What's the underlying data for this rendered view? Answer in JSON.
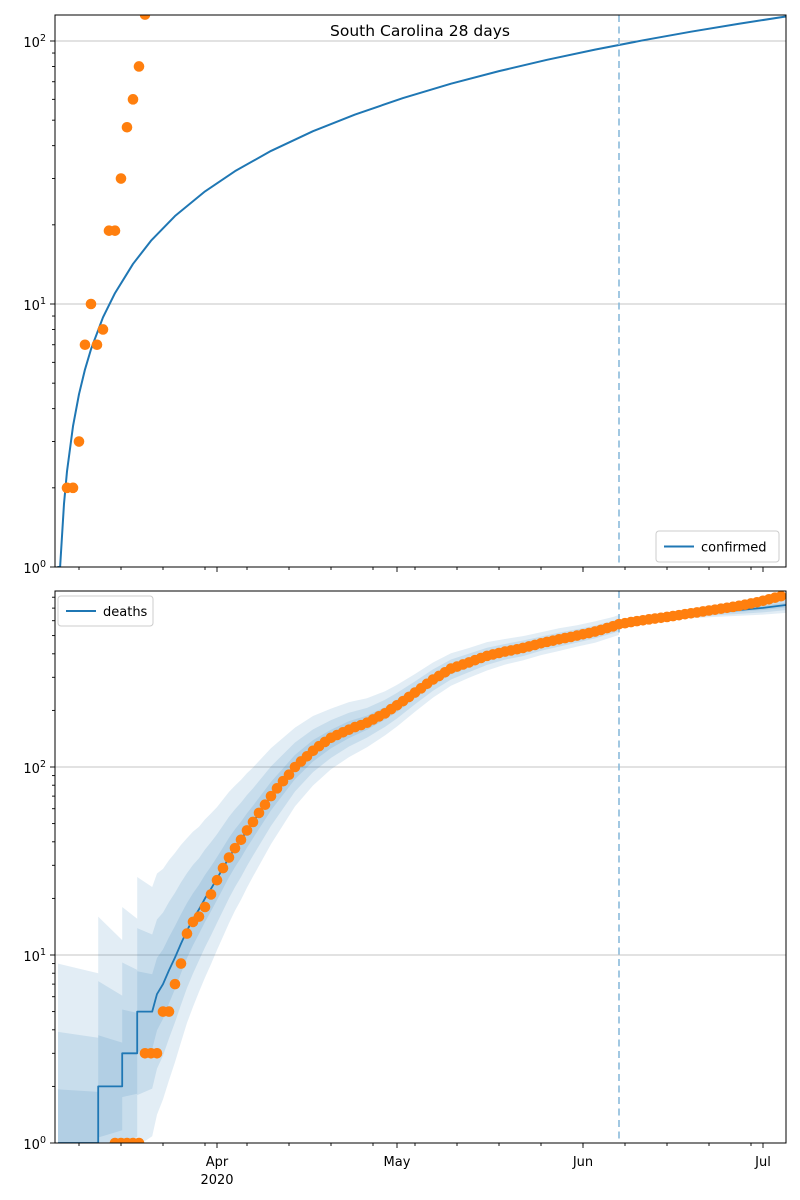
{
  "figure": {
    "title": "South Carolina 28 days",
    "day0_date": "2020-03-05",
    "xlim_days": [
      0,
      121.8
    ],
    "year_label": "2020",
    "x_axis": {
      "major_ticks": [
        {
          "label": "Apr",
          "day": 27
        },
        {
          "label": "May",
          "day": 57
        },
        {
          "label": "Jun",
          "day": 88
        },
        {
          "label": "Jul",
          "day": 118
        }
      ],
      "minor_tick_days": [
        4,
        11,
        18,
        25,
        32,
        39,
        46,
        53,
        60,
        67,
        74,
        81,
        88,
        95,
        102,
        109,
        116
      ]
    },
    "y_axis": {
      "tick_exponents": [
        0,
        1,
        2
      ]
    },
    "vline_date": "2020-06-07",
    "forecast_start_day": 94,
    "colors": {
      "line": "#1f77b4",
      "scatter": "#ff7f0e",
      "vline": "#8abbdb",
      "grid": "#b0b0b0",
      "band": "#1f77b4",
      "spine": "#000000",
      "legend_edge": "#cccccc"
    }
  },
  "chart_data": [
    {
      "type": "line",
      "title": "South Carolina 28 days",
      "yscale": "log",
      "ylim": [
        1,
        126
      ],
      "xlim_days": [
        0,
        121.8
      ],
      "grid": "y-major",
      "legend": {
        "label": "confirmed",
        "position": "lower right"
      },
      "forecast_start_day": 94,
      "series": [
        {
          "name": "confirmed",
          "style": "line",
          "color": "#1f77b4",
          "points": [
            [
              0.4,
              1.0
            ],
            [
              0.85,
              1.0
            ],
            [
              1.5,
              1.74
            ],
            [
              2,
              2.31
            ],
            [
              3,
              3.43
            ],
            [
              4,
              4.54
            ],
            [
              5,
              5.64
            ],
            [
              6,
              6.73
            ],
            [
              8,
              8.9
            ],
            [
              10,
              11.0
            ],
            [
              13,
              14.2
            ],
            [
              16,
              17.4
            ],
            [
              20,
              21.6
            ],
            [
              25,
              26.8
            ],
            [
              30,
              32.0
            ],
            [
              36,
              38.2
            ],
            [
              43,
              45.4
            ],
            [
              50,
              52.5
            ],
            [
              58,
              60.7
            ],
            [
              66,
              68.8
            ],
            [
              74,
              76.8
            ],
            [
              82,
              84.8
            ],
            [
              90,
              92.7
            ],
            [
              98,
              100.6
            ],
            [
              106,
              108.5
            ],
            [
              114,
              116.3
            ],
            [
              121.8,
              123.9
            ]
          ]
        },
        {
          "name": "confirmed observed",
          "style": "scatter",
          "color": "#ff7f0e",
          "points": [
            [
              2,
              2
            ],
            [
              3,
              2
            ],
            [
              4,
              3
            ],
            [
              5,
              7
            ],
            [
              6,
              10
            ],
            [
              7,
              7
            ],
            [
              8,
              8
            ],
            [
              9,
              19
            ],
            [
              10,
              19
            ],
            [
              11,
              30
            ],
            [
              12,
              47
            ],
            [
              13,
              60
            ],
            [
              14,
              80
            ],
            [
              15,
              126
            ]
          ]
        }
      ]
    },
    {
      "type": "line",
      "title": "",
      "yscale": "log",
      "ylim": [
        1,
        863
      ],
      "xlim_days": [
        0,
        121.8
      ],
      "grid": "y-major",
      "legend": {
        "label": "deaths",
        "position": "upper left"
      },
      "forecast_start_day": 94,
      "series": [
        {
          "name": "deaths",
          "style": "line",
          "color": "#1f77b4",
          "points": [
            [
              0.5,
              1
            ],
            [
              7.2,
              1
            ],
            [
              7.2,
              2
            ],
            [
              11.2,
              2
            ],
            [
              11.2,
              3
            ],
            [
              13.7,
              3
            ],
            [
              13.7,
              5
            ],
            [
              16.2,
              5
            ],
            [
              17,
              6.2
            ],
            [
              18,
              7
            ],
            [
              19,
              8.3
            ],
            [
              20,
              9.7
            ],
            [
              21,
              11.5
            ],
            [
              22,
              13.5
            ],
            [
              23,
              15.5
            ],
            [
              24,
              17.5
            ],
            [
              25,
              20
            ],
            [
              26,
              22.5
            ],
            [
              27,
              25.5
            ],
            [
              28,
              29
            ],
            [
              29,
              33
            ],
            [
              30,
              37
            ],
            [
              31,
              41
            ],
            [
              32,
              46
            ],
            [
              33,
              51
            ],
            [
              36,
              70
            ],
            [
              40,
              100
            ],
            [
              43,
              122
            ],
            [
              46,
              141
            ],
            [
              49,
              158
            ],
            [
              52,
              172
            ],
            [
              55,
              193
            ],
            [
              57,
              212
            ],
            [
              60,
              248
            ],
            [
              63,
              290
            ],
            [
              66,
              330
            ],
            [
              69,
              358
            ],
            [
              72,
              388
            ],
            [
              75,
              410
            ],
            [
              78,
              428
            ],
            [
              81,
              453
            ],
            [
              84,
              476
            ],
            [
              87,
              498
            ],
            [
              90,
              522
            ],
            [
              93,
              556
            ],
            [
              94,
              570
            ],
            [
              97,
              590
            ],
            [
              100,
              610
            ],
            [
              103,
              628
            ],
            [
              106,
              645
            ],
            [
              109,
              660
            ],
            [
              112,
              674
            ],
            [
              115,
              688
            ],
            [
              118,
              702
            ],
            [
              121.8,
              727
            ]
          ]
        },
        {
          "name": "deaths observed",
          "style": "scatter",
          "color": "#ff7f0e",
          "points": [
            [
              10,
              1
            ],
            [
              11,
              1
            ],
            [
              12,
              1
            ],
            [
              13,
              1
            ],
            [
              14,
              1
            ],
            [
              15,
              3
            ],
            [
              16,
              3
            ],
            [
              17,
              3
            ],
            [
              18,
              5
            ],
            [
              19,
              5
            ],
            [
              20,
              7
            ],
            [
              21,
              9
            ],
            [
              22,
              13
            ],
            [
              23,
              15
            ],
            [
              24,
              16
            ],
            [
              25,
              18
            ],
            [
              26,
              21
            ],
            [
              27,
              25
            ],
            [
              28,
              29
            ],
            [
              29,
              33
            ],
            [
              30,
              37
            ],
            [
              31,
              41
            ],
            [
              32,
              46
            ],
            [
              33,
              51
            ],
            [
              34,
              57
            ],
            [
              35,
              63
            ],
            [
              36,
              70
            ],
            [
              37,
              77
            ],
            [
              38,
              84
            ],
            [
              39,
              91
            ],
            [
              40,
              100
            ],
            [
              41,
              107
            ],
            [
              42,
              114
            ],
            [
              43,
              122
            ],
            [
              44,
              129
            ],
            [
              45,
              136
            ],
            [
              46,
              143
            ],
            [
              47,
              148
            ],
            [
              48,
              153
            ],
            [
              49,
              158
            ],
            [
              50,
              163
            ],
            [
              51,
              167
            ],
            [
              52,
              172
            ],
            [
              53,
              179
            ],
            [
              54,
              186
            ],
            [
              55,
              193
            ],
            [
              56,
              203
            ],
            [
              57,
              213
            ],
            [
              58,
              224
            ],
            [
              59,
              236
            ],
            [
              60,
              249
            ],
            [
              61,
              262
            ],
            [
              62,
              277
            ],
            [
              63,
              292
            ],
            [
              64,
              305
            ],
            [
              65,
              319
            ],
            [
              66,
              334
            ],
            [
              67,
              342
            ],
            [
              68,
              351
            ],
            [
              69,
              360
            ],
            [
              70,
              370
            ],
            [
              71,
              380
            ],
            [
              72,
              390
            ],
            [
              73,
              397
            ],
            [
              74,
              404
            ],
            [
              75,
              411
            ],
            [
              76,
              417
            ],
            [
              77,
              423
            ],
            [
              78,
              430
            ],
            [
              79,
              438
            ],
            [
              80,
              446
            ],
            [
              81,
              455
            ],
            [
              82,
              463
            ],
            [
              83,
              470
            ],
            [
              84,
              478
            ],
            [
              85,
              485
            ],
            [
              86,
              492
            ],
            [
              87,
              500
            ],
            [
              88,
              508
            ],
            [
              89,
              516
            ],
            [
              90,
              525
            ],
            [
              91,
              536
            ],
            [
              92,
              548
            ],
            [
              93,
              560
            ],
            [
              94,
              575
            ],
            [
              95,
              582
            ],
            [
              96,
              590
            ],
            [
              97,
              597
            ],
            [
              98,
              603
            ],
            [
              99,
              610
            ],
            [
              100,
              616
            ],
            [
              101,
              622
            ],
            [
              102,
              628
            ],
            [
              103,
              635
            ],
            [
              104,
              642
            ],
            [
              105,
              650
            ],
            [
              106,
              657
            ],
            [
              107,
              664
            ],
            [
              108,
              672
            ],
            [
              109,
              680
            ],
            [
              110,
              687
            ],
            [
              111,
              695
            ],
            [
              112,
              703
            ],
            [
              113,
              711
            ],
            [
              114,
              720
            ],
            [
              115,
              730
            ],
            [
              116,
              741
            ],
            [
              117,
              752
            ],
            [
              118,
              766
            ],
            [
              119,
              780
            ],
            [
              120,
              795
            ],
            [
              121,
              810
            ]
          ]
        }
      ],
      "confidence_bands": {
        "color": "#1f77b4",
        "opacity": 0.13,
        "factor_anchor_days": [
          0.5,
          4,
          7.2,
          9,
          11.2,
          13.7,
          16.2,
          18,
          20,
          22,
          24,
          27,
          30,
          33,
          36,
          40,
          43,
          46,
          49,
          52,
          55,
          57,
          60,
          63,
          66,
          69,
          72,
          75,
          78,
          81,
          84,
          87,
          90,
          93,
          94
        ],
        "bands": [
          {
            "name": "outer",
            "factors": [
              9,
              8.5,
              8,
              7,
              6,
              5.2,
              4.6,
              4.1,
              3.6,
              3.1,
              2.75,
              2.4,
              2.15,
              1.95,
              1.8,
              1.62,
              1.53,
              1.45,
              1.4,
              1.35,
              1.31,
              1.29,
              1.26,
              1.24,
              1.22,
              1.2,
              1.19,
              1.17,
              1.16,
              1.15,
              1.15,
              1.14,
              1.14,
              1.13,
              1.13
            ]
          },
          {
            "name": "mid",
            "factors": [
              3.9,
              3.76,
              3.63,
              3.34,
              3.04,
              2.78,
              2.57,
              2.4,
              2.21,
              2.02,
              1.87,
              1.72,
              1.61,
              1.51,
              1.44,
              1.35,
              1.3,
              1.26,
              1.23,
              1.2,
              1.18,
              1.17,
              1.15,
              1.14,
              1.13,
              1.12,
              1.11,
              1.1,
              1.1,
              1.09,
              1.09,
              1.085,
              1.08,
              1.08,
              1.08
            ]
          },
          {
            "name": "inner",
            "factors": [
              1.93,
              1.9,
              1.87,
              1.79,
              1.71,
              1.64,
              1.58,
              1.53,
              1.47,
              1.4,
              1.35,
              1.3,
              1.26,
              1.22,
              1.19,
              1.16,
              1.14,
              1.12,
              1.11,
              1.09,
              1.08,
              1.08,
              1.07,
              1.065,
              1.06,
              1.056,
              1.052,
              1.048,
              1.046,
              1.043,
              1.041,
              1.04,
              1.039,
              1.037,
              1.037
            ]
          }
        ],
        "forecast_end_factors": [
          1.1,
          1.065,
          1.03
        ]
      }
    }
  ]
}
